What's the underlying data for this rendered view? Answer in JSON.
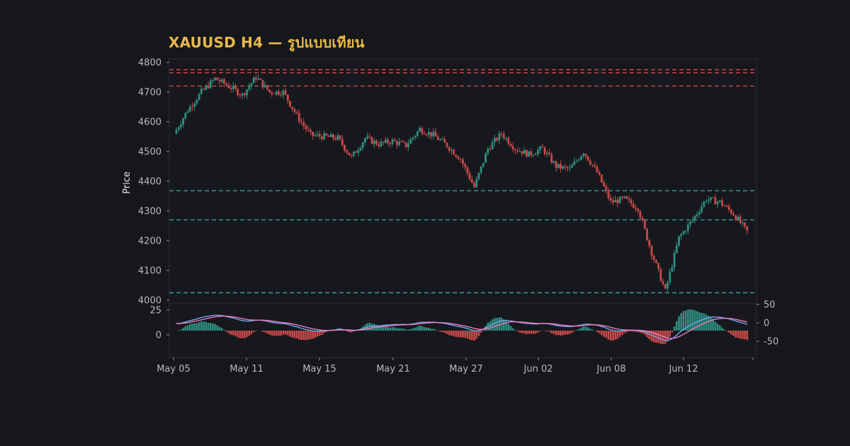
{
  "title": "XAUUSD H4 — รูปแบบเทียน",
  "colors": {
    "background": "#16171b",
    "panel": "#17181d",
    "panel_border": "#2a2d36",
    "title": "#e8b84a",
    "up": "#2f8f80",
    "down": "#c84a4a",
    "resistance_line": "#c84a4a",
    "support_line": "#3a9a9a",
    "macd_line": "#6fa8f0",
    "signal_line": "#f07ac0"
  },
  "chart_data": [
    {
      "type": "candlestick",
      "title": "XAUUSD H4 — รูปแบบเทียน",
      "ylabel": "Price",
      "ylim": [
        4000,
        4800
      ],
      "yticks": [
        4000,
        4100,
        4200,
        4300,
        4400,
        4500,
        4600,
        4700,
        4800
      ],
      "xticks": [
        "May 05",
        "May 11",
        "May 15",
        "May 21",
        "May 27",
        "Jun 02",
        "Jun 08",
        "Jun 12"
      ],
      "grid": false,
      "horizontal_levels": [
        {
          "kind": "resistance",
          "value": 4775
        },
        {
          "kind": "resistance",
          "value": 4765
        },
        {
          "kind": "resistance",
          "value": 4720
        },
        {
          "kind": "support",
          "value": 4368
        },
        {
          "kind": "support",
          "value": 4270
        },
        {
          "kind": "support",
          "value": 4025
        }
      ],
      "price_path_approx": [
        {
          "date": "May 05",
          "close": 4560
        },
        {
          "date": "May 06",
          "close": 4640
        },
        {
          "date": "May 07",
          "close": 4700
        },
        {
          "date": "May 08",
          "close": 4745
        },
        {
          "date": "May 09",
          "close": 4720
        },
        {
          "date": "May 10",
          "close": 4690
        },
        {
          "date": "May 11",
          "close": 4750
        },
        {
          "date": "May 12",
          "close": 4700
        },
        {
          "date": "May 13",
          "close": 4700
        },
        {
          "date": "May 14",
          "close": 4620
        },
        {
          "date": "May 15",
          "close": 4555
        },
        {
          "date": "May 16",
          "close": 4550
        },
        {
          "date": "May 17",
          "close": 4545
        },
        {
          "date": "May 18",
          "close": 4480
        },
        {
          "date": "May 19",
          "close": 4545
        },
        {
          "date": "May 20",
          "close": 4525
        },
        {
          "date": "May 21",
          "close": 4535
        },
        {
          "date": "May 22",
          "close": 4520
        },
        {
          "date": "May 23",
          "close": 4575
        },
        {
          "date": "May 24",
          "close": 4555
        },
        {
          "date": "May 25",
          "close": 4520
        },
        {
          "date": "May 26",
          "close": 4475
        },
        {
          "date": "May 27",
          "close": 4380
        },
        {
          "date": "May 28",
          "close": 4510
        },
        {
          "date": "May 29",
          "close": 4560
        },
        {
          "date": "May 30",
          "close": 4510
        },
        {
          "date": "May 31",
          "close": 4490
        },
        {
          "date": "Jun 01",
          "close": 4510
        },
        {
          "date": "Jun 02",
          "close": 4450
        },
        {
          "date": "Jun 03",
          "close": 4440
        },
        {
          "date": "Jun 04",
          "close": 4500
        },
        {
          "date": "Jun 05",
          "close": 4430
        },
        {
          "date": "Jun 06",
          "close": 4330
        },
        {
          "date": "Jun 07",
          "close": 4340
        },
        {
          "date": "Jun 08",
          "close": 4310
        },
        {
          "date": "Jun 09",
          "close": 4160
        },
        {
          "date": "Jun 10",
          "close": 4030
        },
        {
          "date": "Jun 11",
          "close": 4210
        },
        {
          "date": "Jun 12",
          "close": 4270
        },
        {
          "date": "Jun 13",
          "close": 4340
        },
        {
          "date": "Jun 14",
          "close": 4330
        },
        {
          "date": "Jun 15",
          "close": 4290
        },
        {
          "date": "Jun 16",
          "close": 4230
        }
      ]
    },
    {
      "type": "macd",
      "yticks_left": [
        25,
        0
      ],
      "yticks_right": [
        50,
        0,
        -50
      ],
      "histogram_range": [
        -50,
        50
      ],
      "line_range": [
        -40,
        40
      ],
      "lines": [
        "MACD",
        "Signal"
      ],
      "histogram": true
    }
  ]
}
